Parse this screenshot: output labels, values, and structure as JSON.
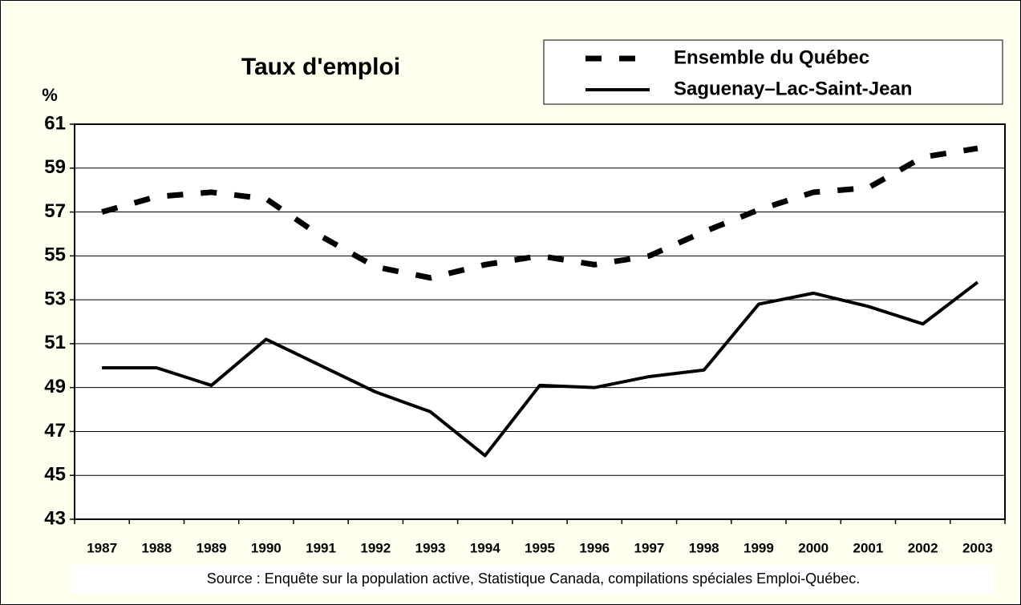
{
  "chart_data": {
    "type": "line",
    "title": "Taux d'emploi",
    "y_label": "%",
    "source": "Source : Enquête sur la population active, Statistique Canada, compilations spéciales Emploi-Québec.",
    "categories": [
      "1987",
      "1988",
      "1989",
      "1990",
      "1991",
      "1992",
      "1993",
      "1994",
      "1995",
      "1996",
      "1997",
      "1998",
      "1999",
      "2000",
      "2001",
      "2002",
      "2003"
    ],
    "series": [
      {
        "name": "Ensemble du Québec",
        "color": "#000000",
        "style": "dashed",
        "values": [
          57.0,
          57.7,
          57.9,
          57.6,
          55.9,
          54.5,
          54.0,
          54.6,
          55.0,
          54.6,
          55.0,
          56.1,
          57.1,
          57.9,
          58.1,
          59.5,
          59.9
        ]
      },
      {
        "name": "Saguenay–Lac-Saint-Jean",
        "color": "#000000",
        "style": "solid",
        "values": [
          49.9,
          49.9,
          49.1,
          51.2,
          50.0,
          48.8,
          47.9,
          45.9,
          49.1,
          49.0,
          49.5,
          49.8,
          52.8,
          53.3,
          52.7,
          51.9,
          53.8
        ]
      }
    ],
    "ylim": [
      43,
      61
    ],
    "yticks": [
      43,
      45,
      47,
      49,
      51,
      53,
      55,
      57,
      59,
      61
    ],
    "grid": true,
    "legend": "top-right"
  }
}
